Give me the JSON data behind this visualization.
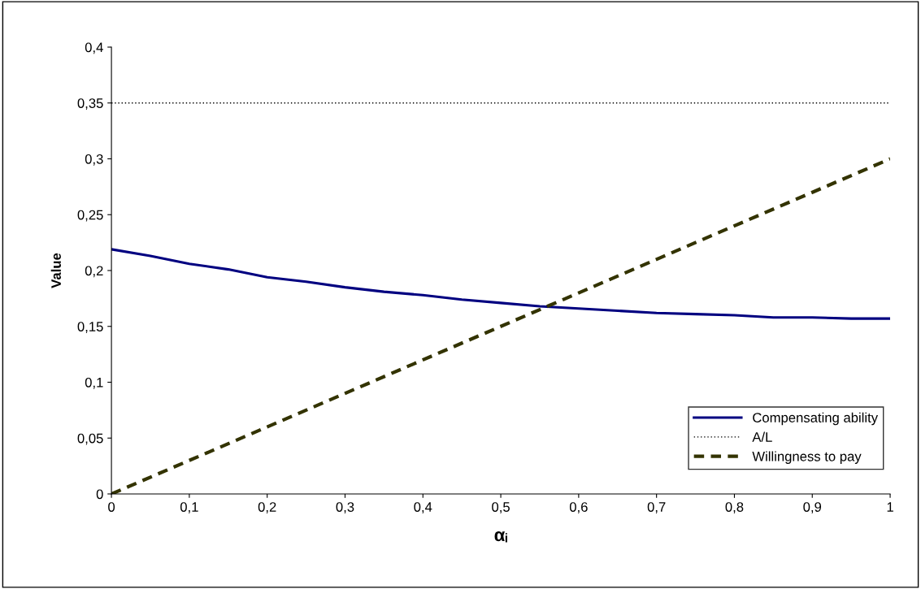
{
  "chart_data": {
    "type": "line",
    "xlabel": "αᵢ",
    "ylabel": "Value",
    "xlim": [
      0,
      1
    ],
    "ylim": [
      0,
      0.4
    ],
    "xticks": [
      0,
      {
        "value": 0.1,
        "label": "0,1"
      },
      {
        "value": 0.2,
        "label": "0,2"
      },
      {
        "value": 0.3,
        "label": "0,3"
      },
      {
        "value": 0.4,
        "label": "0,4"
      },
      {
        "value": 0.5,
        "label": "0,5"
      },
      {
        "value": 0.6,
        "label": "0,6"
      },
      {
        "value": 0.7,
        "label": "0,7"
      },
      {
        "value": 0.8,
        "label": "0,8"
      },
      {
        "value": 0.9,
        "label": "0,9"
      },
      1
    ],
    "yticks": [
      0,
      {
        "value": 0.05,
        "label": "0,05"
      },
      {
        "value": 0.1,
        "label": "0,1"
      },
      {
        "value": 0.15,
        "label": "0,15"
      },
      {
        "value": 0.2,
        "label": "0,2"
      },
      {
        "value": 0.25,
        "label": "0,25"
      },
      {
        "value": 0.3,
        "label": "0,3"
      },
      {
        "value": 0.35,
        "label": "0,35"
      },
      {
        "value": 0.4,
        "label": "0,4"
      }
    ],
    "grid": false,
    "legend": "bottom right",
    "marker": "none",
    "series": [
      {
        "name": "Compensating ability",
        "color": "#000080",
        "line_style": "solid",
        "x": [
          0,
          0.05,
          0.1,
          0.15,
          0.2,
          0.25,
          0.3,
          0.35,
          0.4,
          0.45,
          0.5,
          0.55,
          0.6,
          0.65,
          0.7,
          0.75,
          0.8,
          0.85,
          0.9,
          0.95,
          1
        ],
        "values": [
          0.219,
          0.213,
          0.206,
          0.201,
          0.194,
          0.19,
          0.185,
          0.181,
          0.178,
          0.174,
          0.171,
          0.168,
          0.166,
          0.164,
          0.162,
          0.161,
          0.16,
          0.158,
          0.158,
          0.157,
          0.157
        ]
      },
      {
        "name": "A/L",
        "color": "#000000",
        "line_style": "dotted",
        "x": [
          0,
          1
        ],
        "values": [
          0.35,
          0.35
        ]
      },
      {
        "name": "Willingness to pay",
        "color": "#333300",
        "line_style": "dashed",
        "x": [
          0,
          1
        ],
        "values": [
          0,
          0.3
        ]
      }
    ]
  }
}
